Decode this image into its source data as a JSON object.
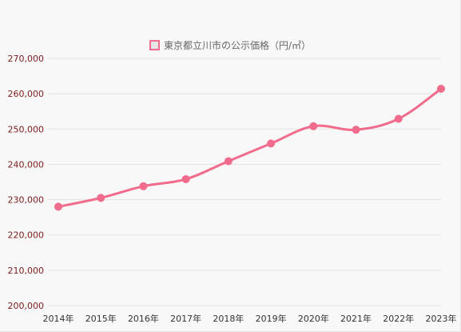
{
  "chart_data": {
    "type": "line",
    "categories": [
      "2014年",
      "2015年",
      "2016年",
      "2017年",
      "2018年",
      "2019年",
      "2020年",
      "2021年",
      "2022年",
      "2023年"
    ],
    "series": [
      {
        "name": "東京都立川市の公示価格（円/㎡）",
        "values": [
          228000,
          230500,
          233800,
          235800,
          240900,
          245900,
          250800,
          249800,
          252900,
          261400
        ],
        "color": "#f06b8c"
      }
    ],
    "title": "",
    "xlabel": "",
    "ylabel": "",
    "ylim": [
      200000,
      270000
    ],
    "ytick_step": 10000,
    "yticks": [
      "200,000",
      "210,000",
      "220,000",
      "230,000",
      "240,000",
      "250,000",
      "260,000",
      "270,000"
    ],
    "grid": true,
    "legend_position": "top"
  }
}
